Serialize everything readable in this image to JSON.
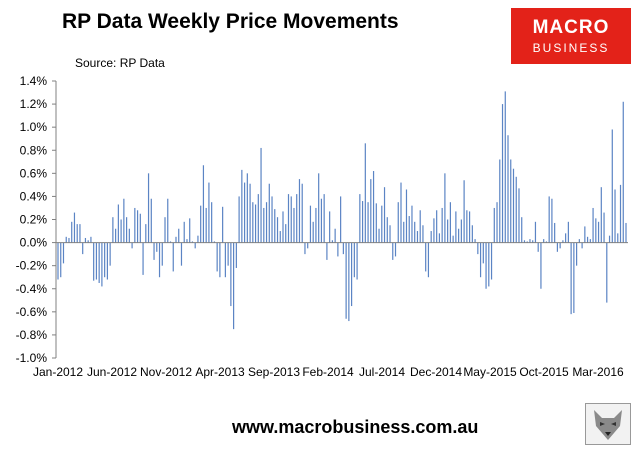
{
  "header": {
    "title": "RP Data Weekly Price Movements",
    "source": "Source: RP Data"
  },
  "logo": {
    "line1": "MACRO",
    "line2": "BUSINESS",
    "bg": "#e32219"
  },
  "footer": {
    "url": "www.macrobusiness.com.au",
    "badge_icon": "wolf-icon"
  },
  "colors": {
    "bar": "#5b84c4",
    "axis": "#808080",
    "grid": "#d9d9d9"
  },
  "chart_data": {
    "type": "bar",
    "title": "RP Data Weekly Price Movements",
    "xlabel": "",
    "ylabel": "",
    "ylim": [
      -1.0,
      1.4
    ],
    "y_ticks": [
      1.4,
      1.2,
      1.0,
      0.8,
      0.6,
      0.4,
      0.2,
      0.0,
      -0.2,
      -0.4,
      -0.6,
      -0.8,
      -1.0
    ],
    "y_tick_labels": [
      "1.4%",
      "1.2%",
      "1.0%",
      "0.8%",
      "0.6%",
      "0.4%",
      "0.2%",
      "0.0%",
      "-0.2%",
      "-0.4%",
      "-0.6%",
      "-0.8%",
      "-1.0%"
    ],
    "x_tick_labels": [
      "Jan-2012",
      "Jun-2012",
      "Nov-2012",
      "Apr-2013",
      "Sep-2013",
      "Feb-2014",
      "Jul-2014",
      "Dec-2014",
      "May-2015",
      "Oct-2015",
      "Mar-2016"
    ],
    "grid": false,
    "legend": "none",
    "unit": "%",
    "series": [
      {
        "values": [
          -0.32,
          -0.3,
          -0.18,
          0.05,
          0.04,
          0.18,
          0.26,
          0.16,
          0.16,
          -0.1,
          0.04,
          0.02,
          0.05,
          -0.33,
          -0.32,
          -0.35,
          -0.38,
          -0.3,
          -0.32,
          -0.2,
          0.22,
          0.12,
          0.33,
          0.2,
          0.38,
          0.22,
          0.12,
          -0.05,
          0.3,
          0.28,
          0.25,
          -0.28,
          0.16,
          0.6,
          0.38,
          -0.15,
          -0.08,
          -0.3,
          -0.2,
          0.22,
          0.38,
          0.01,
          -0.25,
          0.05,
          0.12,
          -0.2,
          0.18,
          0.03,
          0.21,
          0.01,
          -0.05,
          0.06,
          0.32,
          0.67,
          0.3,
          0.52,
          0.35,
          0.01,
          -0.25,
          -0.3,
          0.31,
          -0.3,
          -0.2,
          -0.55,
          -0.75,
          -0.22,
          0.4,
          0.63,
          0.52,
          0.6,
          0.51,
          0.35,
          0.33,
          0.42,
          0.82,
          0.3,
          0.35,
          0.51,
          0.4,
          0.29,
          0.22,
          0.1,
          0.27,
          0.16,
          0.42,
          0.4,
          0.3,
          0.42,
          0.55,
          0.51,
          -0.1,
          -0.05,
          0.32,
          0.18,
          0.3,
          0.6,
          0.38,
          0.42,
          -0.15,
          0.27,
          0.02,
          0.12,
          -0.12,
          0.4,
          -0.1,
          -0.66,
          -0.68,
          -0.55,
          -0.3,
          -0.32,
          0.42,
          0.36,
          0.86,
          0.35,
          0.55,
          0.62,
          0.34,
          0.12,
          0.32,
          0.48,
          0.22,
          0.15,
          -0.15,
          -0.12,
          0.35,
          0.52,
          0.18,
          0.46,
          0.23,
          0.32,
          0.18,
          0.1,
          0.28,
          0.15,
          -0.25,
          -0.3,
          0.1,
          0.21,
          0.28,
          0.08,
          0.3,
          0.6,
          0.2,
          0.35,
          0.06,
          0.27,
          0.12,
          0.2,
          0.54,
          0.28,
          0.27,
          0.15,
          0.03,
          -0.1,
          -0.3,
          -0.18,
          -0.4,
          -0.38,
          -0.32,
          0.3,
          0.35,
          0.72,
          1.2,
          1.31,
          0.93,
          0.72,
          0.64,
          0.57,
          0.47,
          0.22,
          0.02,
          0.01,
          0.03,
          0.02,
          0.18,
          -0.08,
          -0.4,
          0.03,
          0.01,
          0.4,
          0.38,
          0.17,
          -0.08,
          -0.05,
          0.02,
          0.08,
          0.18,
          -0.62,
          -0.61,
          -0.2,
          0.03,
          -0.05,
          0.14,
          0.05,
          0.03,
          0.3,
          0.21,
          0.18,
          0.48,
          0.26,
          -0.52,
          0.06,
          0.98,
          0.46,
          0.08,
          0.5,
          1.22,
          0.17
        ]
      }
    ]
  }
}
